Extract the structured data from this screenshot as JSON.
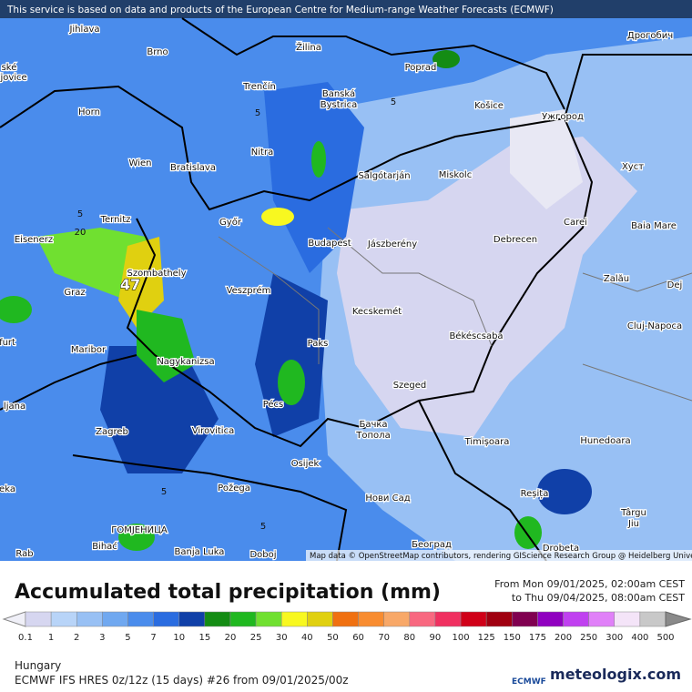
{
  "notice": "This service is based on data and products of the European Centre for Medium-range Weather Forecasts (ECMWF)",
  "attribution": "Map data © OpenStreetMap contributors, rendering GIScience Research Group @ Heidelberg University",
  "cities": [
    "Jihlava",
    "Brno",
    "Žilina",
    "Poprad",
    "Дрогобич",
    "ské",
    "ějovice",
    "Trenčín",
    "Banská",
    "Bystrica",
    "Horn",
    "Košice",
    "Ужгород",
    "Nitra",
    "Wien",
    "Bratislava",
    "Salgótarján",
    "Miskolc",
    "Хуст",
    "Ternitz",
    "Győr",
    "Carei",
    "Baia Mare",
    "Eisenerz",
    "Budapest",
    "Jászberény",
    "Debrecen",
    "Szombathely",
    "Zalău",
    "Graz",
    "Veszprém",
    "Dej",
    "Kecskemét",
    "Cluj-Napoca",
    "furt",
    "Maribor",
    "Paks",
    "Békéscsaba",
    "Nagykanizsa",
    "Szeged",
    "ljana",
    "Pécs",
    "Zagreb",
    "Virovitica",
    "Бачка",
    "Топола",
    "Timișoara",
    "Hunedoara",
    "Osijek",
    "eka",
    "Požega",
    "Нови Сад",
    "Reșița",
    "Târgu",
    "Jiu",
    "ГОМЈЕНИЦА",
    "Bihać",
    "Banja Luka",
    "Doboj",
    "Београд",
    "Drobeta",
    "Rab"
  ],
  "contour_labels": [
    "5",
    "20",
    "47",
    "5",
    "5",
    "5",
    "5"
  ],
  "title": "Accumulated total precipitation (mm)",
  "period_from": "From Mon 09/01/2025, 02:00am CEST",
  "period_to": "to Thu 09/04/2025, 08:00am CEST",
  "legend": {
    "labels": [
      0.1,
      1,
      2,
      3,
      5,
      7,
      10,
      15,
      20,
      25,
      30,
      40,
      50,
      60,
      70,
      80,
      90,
      100,
      125,
      150,
      175,
      200,
      250,
      300,
      400,
      500
    ],
    "colors": [
      "#f0f0f8",
      "#d6d6f0",
      "#b8d4f8",
      "#98c0f4",
      "#70a8f0",
      "#4a8cec",
      "#2a6ce0",
      "#1040a8",
      "#148c14",
      "#20b820",
      "#70e030",
      "#f8f820",
      "#e0d010",
      "#f07010",
      "#f88c30",
      "#f8a868",
      "#f86880",
      "#f03060",
      "#d00018",
      "#a00010",
      "#800050",
      "#9000c0",
      "#c040f0",
      "#e080f8",
      "#f4e4f8",
      "#c8c8c8",
      "#8a8a8a"
    ]
  },
  "region": "Hungary",
  "model": "ECMWF IFS HRES 0z/12z (15 days) #26 from  09/01/2025/00z",
  "logo_left": "ECMWF",
  "logo_right": "meteologix.com"
}
